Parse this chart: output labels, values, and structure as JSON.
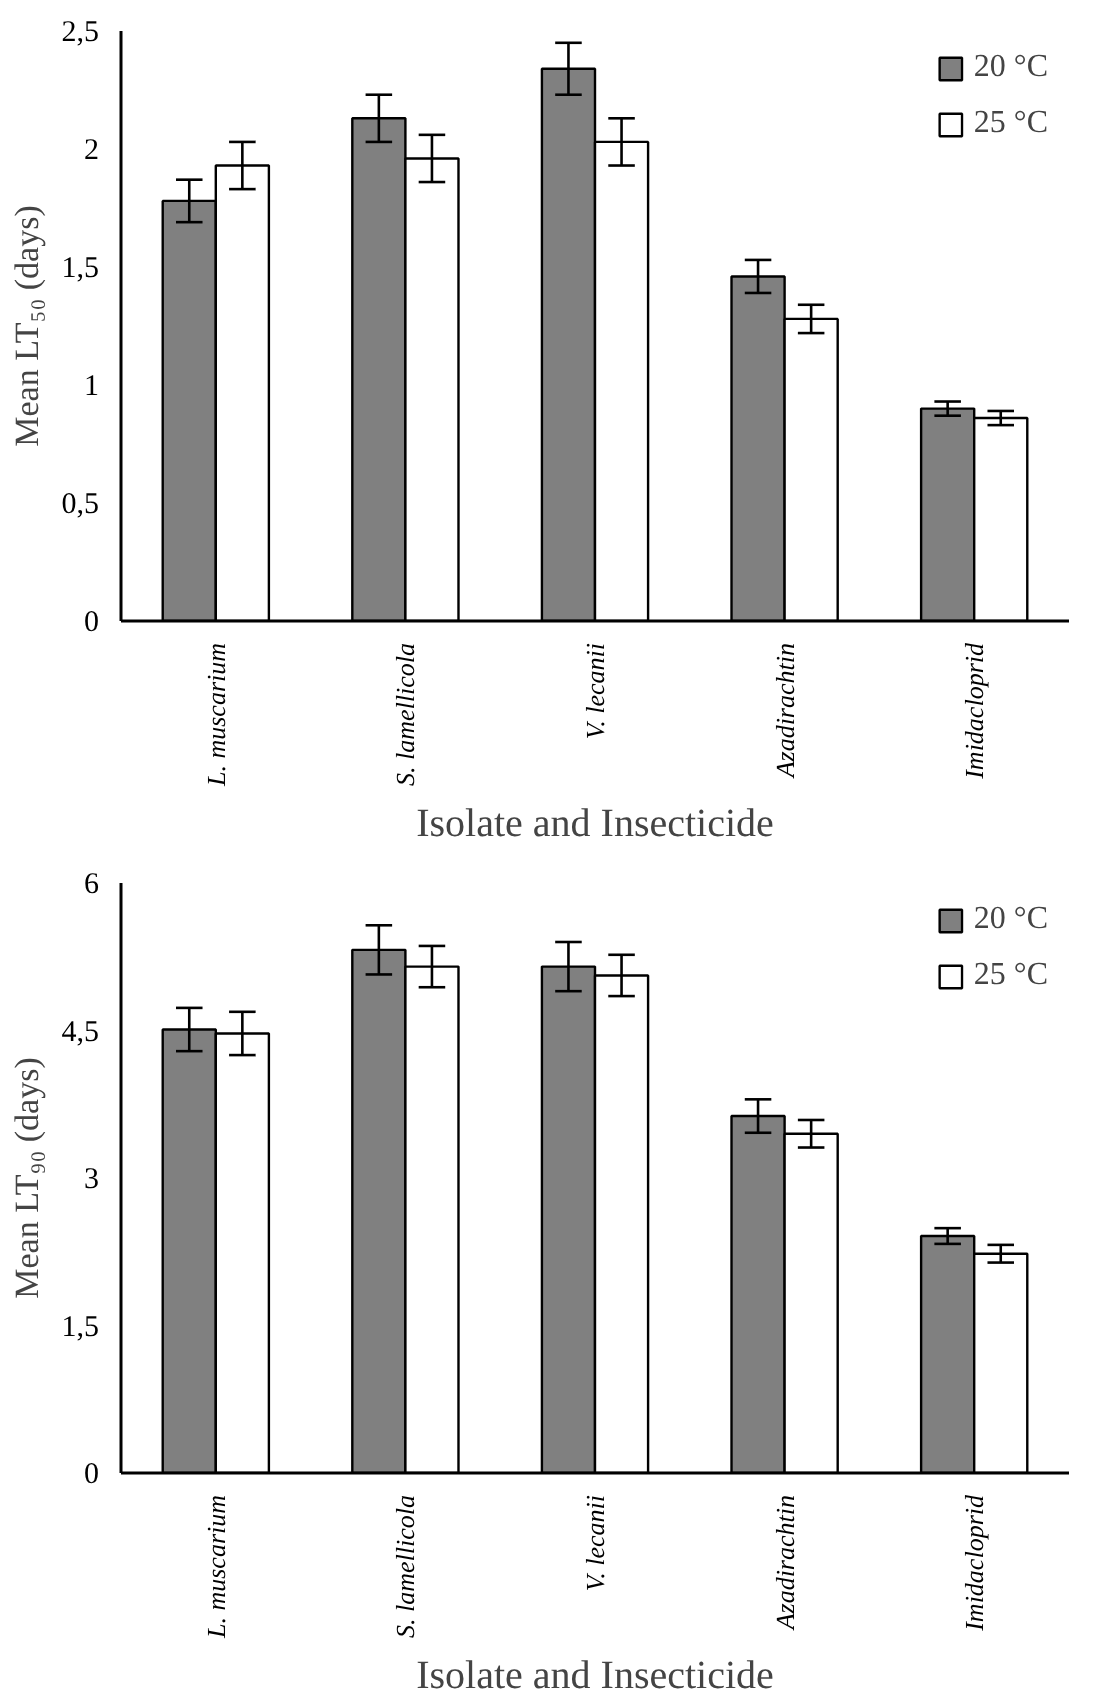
{
  "chart_data": [
    {
      "type": "bar",
      "categories": [
        "L. muscarium",
        "S. lamellicola",
        "V. lecanii",
        "Azadirachtin",
        "Imidacloprid"
      ],
      "xlabel": "Isolate and Insecticide",
      "ylabel": "Mean LT₅₀ (days)",
      "ylim": [
        0,
        2.5
      ],
      "yticks": [
        0,
        {
          "value": 0.5,
          "label": "0,5"
        },
        1,
        {
          "value": 1.5,
          "label": "1,5"
        },
        2,
        {
          "value": 2.5,
          "label": "2,5"
        }
      ],
      "grid": false,
      "legend": "top right",
      "series": [
        {
          "name": "20 °C",
          "color": "#808080",
          "values": [
            1.78,
            2.13,
            2.34,
            1.46,
            0.9
          ],
          "errors": [
            0.09,
            0.1,
            0.11,
            0.07,
            0.03
          ]
        },
        {
          "name": "25 °C",
          "color": "#ffffff",
          "values": [
            1.93,
            1.96,
            2.03,
            1.28,
            0.86
          ],
          "errors": [
            0.1,
            0.1,
            0.1,
            0.06,
            0.03
          ]
        }
      ]
    },
    {
      "type": "bar",
      "categories": [
        "L. muscarium",
        "S. lamellicola",
        "V. lecanii",
        "Azadirachtin",
        "Imidacloprid"
      ],
      "xlabel": "Isolate and Insecticide",
      "ylabel": "Mean LT₉₀ (days)",
      "ylim": [
        0,
        6
      ],
      "yticks": [
        0,
        {
          "value": 1.5,
          "label": "1,5"
        },
        3,
        {
          "value": 4.5,
          "label": "4,5"
        },
        6
      ],
      "grid": false,
      "legend": "top right",
      "series": [
        {
          "name": "20 °C",
          "color": "#808080",
          "values": [
            4.51,
            5.32,
            5.15,
            3.63,
            2.41
          ],
          "errors": [
            0.22,
            0.25,
            0.25,
            0.17,
            0.08
          ]
        },
        {
          "name": "25 °C",
          "color": "#ffffff",
          "values": [
            4.47,
            5.15,
            5.06,
            3.45,
            2.23
          ],
          "errors": [
            0.22,
            0.21,
            0.21,
            0.14,
            0.09
          ]
        }
      ]
    }
  ]
}
